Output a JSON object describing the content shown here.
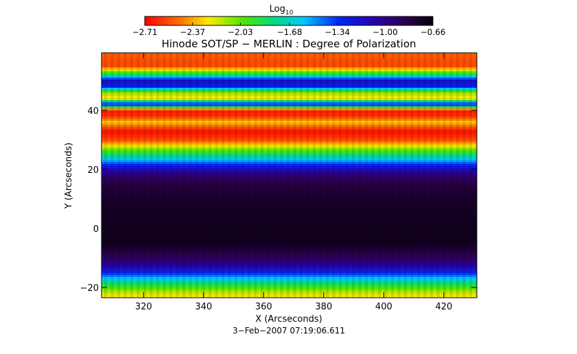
{
  "chart_data": {
    "type": "heatmap",
    "title": "Hinode SOT/SP − MERLIN : Degree of Polarization",
    "xlabel": "X (Arcseconds)",
    "ylabel": "Y (Arcseconds)",
    "xlim": [
      306,
      431
    ],
    "ylim": [
      -23.5,
      59.5
    ],
    "xticks": [
      {
        "value": 320,
        "label": "320"
      },
      {
        "value": 340,
        "label": "340"
      },
      {
        "value": 360,
        "label": "360"
      },
      {
        "value": 380,
        "label": "380"
      },
      {
        "value": 400,
        "label": "400"
      },
      {
        "value": 420,
        "label": "420"
      }
    ],
    "yticks": [
      {
        "value": -20,
        "label": "−20"
      },
      {
        "value": 0,
        "label": "0"
      },
      {
        "value": 20,
        "label": "20"
      },
      {
        "value": 40,
        "label": "40"
      }
    ],
    "colorbar": {
      "label": "Log",
      "label_sub": "10",
      "range": [
        -2.71,
        -0.66
      ],
      "colormap": "rainbow",
      "ticks": [
        {
          "value": -2.71,
          "label": "−2.71"
        },
        {
          "value": -2.37,
          "label": "−2.37"
        },
        {
          "value": -2.03,
          "label": "−2.03"
        },
        {
          "value": -1.68,
          "label": "−1.68"
        },
        {
          "value": -1.34,
          "label": "−1.34"
        },
        {
          "value": -1.0,
          "label": "−1.00"
        },
        {
          "value": -0.66,
          "label": "−0.66"
        }
      ]
    },
    "y_profile": [
      {
        "y": 59.5,
        "v": -2.5
      },
      {
        "y": 55,
        "v": -2.55
      },
      {
        "y": 52,
        "v": -1.8
      },
      {
        "y": 50,
        "v": -1.15
      },
      {
        "y": 48,
        "v": -1.3
      },
      {
        "y": 46,
        "v": -2.1
      },
      {
        "y": 44,
        "v": -2.3
      },
      {
        "y": 42,
        "v": -1.2
      },
      {
        "y": 40,
        "v": -2.65
      },
      {
        "y": 38,
        "v": -2.6
      },
      {
        "y": 36,
        "v": -2.3
      },
      {
        "y": 33,
        "v": -2.68
      },
      {
        "y": 30,
        "v": -2.55
      },
      {
        "y": 27,
        "v": -2.1
      },
      {
        "y": 24,
        "v": -1.7
      },
      {
        "y": 21,
        "v": -1.25
      },
      {
        "y": 18,
        "v": -0.95
      },
      {
        "y": 14,
        "v": -0.8
      },
      {
        "y": 8,
        "v": -0.74
      },
      {
        "y": 0,
        "v": -0.72
      },
      {
        "y": -5,
        "v": -0.72
      },
      {
        "y": -9,
        "v": -0.85
      },
      {
        "y": -12,
        "v": -1.0
      },
      {
        "y": -15,
        "v": -1.3
      },
      {
        "y": -18,
        "v": -1.75
      },
      {
        "y": -21,
        "v": -2.1
      },
      {
        "y": -23.5,
        "v": -2.3
      }
    ],
    "date_label": "3−Feb−2007 07:19:06.611"
  }
}
